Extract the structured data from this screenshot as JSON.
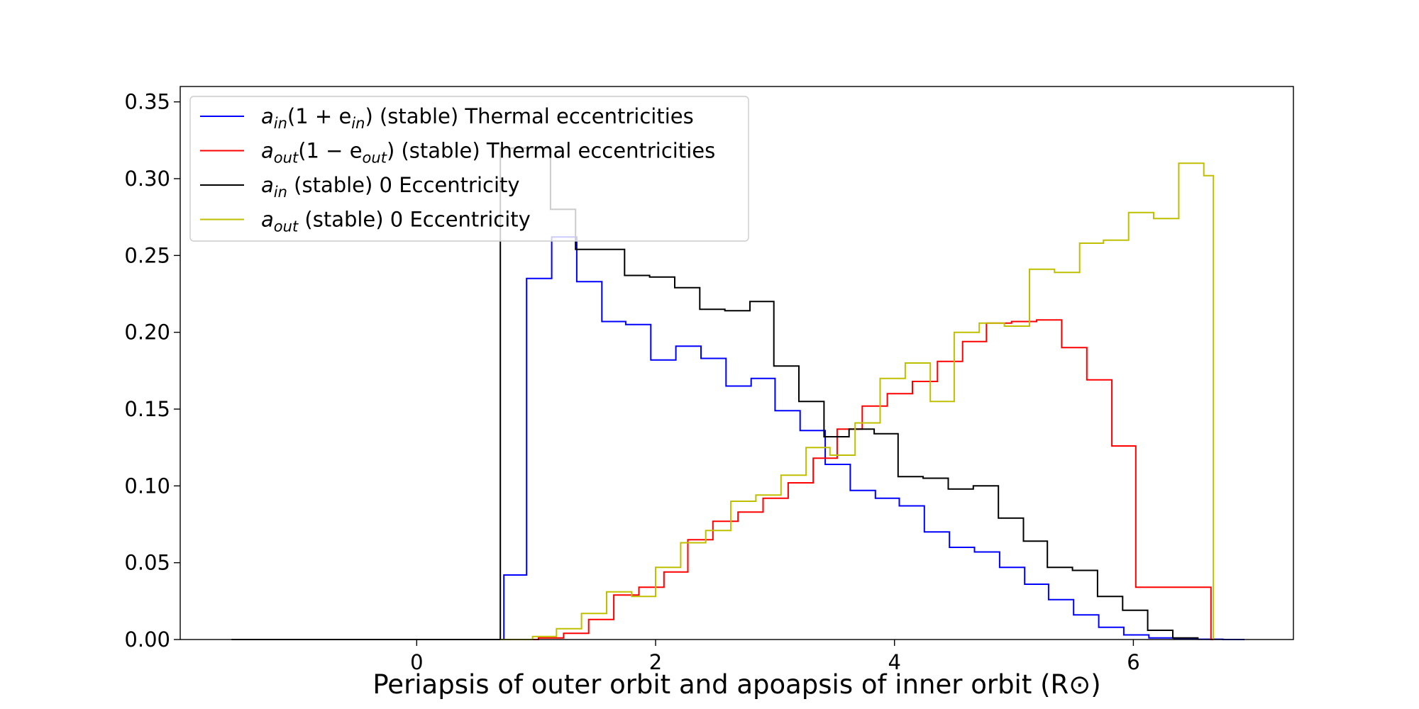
{
  "chart_data": {
    "type": "line",
    "title": "",
    "xlabel": "Periapsis of outer orbit and apoapsis of inner orbit (R⊙)",
    "ylabel": "",
    "xlim": [
      -1.98,
      7.34
    ],
    "ylim": [
      0.0,
      0.36
    ],
    "xticks": [
      0,
      2,
      4,
      6
    ],
    "yticks": [
      0.0,
      0.05,
      0.1,
      0.15,
      0.2,
      0.25,
      0.3,
      0.35
    ],
    "xtick_labels": [
      "0",
      "2",
      "4",
      "6"
    ],
    "ytick_labels": [
      "0.00",
      "0.05",
      "0.10",
      "0.15",
      "0.20",
      "0.25",
      "0.30",
      "0.35"
    ],
    "grid": false,
    "legend_position": "upper-left",
    "series": [
      {
        "name": "a_in(1 + e_in) (stable) Thermal eccentricities",
        "legend_main": "a",
        "legend_sub": "in",
        "legend_tail": "(1 + e",
        "legend_sub2": "in",
        "legend_rest": ") (stable) Thermal eccentricities",
        "color": "#0000ff",
        "x": [
          0.72,
          0.73,
          0.92,
          1.13,
          1.34,
          1.55,
          1.75,
          1.96,
          2.17,
          2.38,
          2.59,
          2.8,
          3.0,
          3.21,
          3.42,
          3.63,
          3.84,
          4.04,
          4.25,
          4.46,
          4.67,
          4.88,
          5.09,
          5.29,
          5.5,
          5.71,
          5.92,
          6.13,
          6.34,
          6.54,
          6.75,
          6.92,
          6.93
        ],
        "y": [
          0.0,
          0.042,
          0.235,
          0.262,
          0.233,
          0.207,
          0.205,
          0.182,
          0.191,
          0.183,
          0.165,
          0.17,
          0.149,
          0.136,
          0.114,
          0.097,
          0.092,
          0.087,
          0.07,
          0.06,
          0.057,
          0.047,
          0.036,
          0.026,
          0.016,
          0.008,
          0.003,
          0.001,
          0.0005,
          0.0002,
          0.0,
          0.0,
          0.0
        ]
      },
      {
        "name": "a_out(1 − e_out) (stable) Thermal eccentricities",
        "legend_main": "a",
        "legend_sub": "out",
        "legend_tail": "(1 − e",
        "legend_sub2": "out",
        "legend_rest": ") (stable) Thermal eccentricities",
        "color": "#ff0000",
        "x": [
          -1.55,
          1.02,
          1.23,
          1.44,
          1.65,
          1.86,
          2.07,
          2.27,
          2.48,
          2.69,
          2.9,
          3.11,
          3.32,
          3.52,
          3.73,
          3.94,
          4.15,
          4.36,
          4.57,
          4.77,
          4.98,
          5.19,
          5.4,
          5.61,
          5.82,
          6.02,
          6.23,
          6.44,
          6.65,
          6.67
        ],
        "y": [
          0.0,
          0.001,
          0.004,
          0.013,
          0.029,
          0.034,
          0.044,
          0.065,
          0.077,
          0.083,
          0.092,
          0.102,
          0.118,
          0.137,
          0.152,
          0.16,
          0.168,
          0.181,
          0.194,
          0.206,
          0.207,
          0.208,
          0.19,
          0.169,
          0.126,
          0.034,
          0.034,
          0.034,
          0.0,
          0.0
        ]
      },
      {
        "name": "a_in (stable) 0 Eccentricity",
        "legend_main": "a",
        "legend_sub": "in",
        "legend_tail": "",
        "legend_sub2": "",
        "legend_rest": " (stable) 0 Eccentricity",
        "color": "#000000",
        "x": [
          -1.55,
          0.69,
          0.7,
          0.91,
          1.12,
          1.33,
          1.53,
          1.74,
          1.95,
          2.16,
          2.37,
          2.58,
          2.79,
          2.99,
          3.2,
          3.41,
          3.62,
          3.83,
          4.03,
          4.24,
          4.45,
          4.66,
          4.87,
          5.08,
          5.28,
          5.49,
          5.7,
          5.91,
          6.12,
          6.33,
          6.54
        ],
        "y": [
          0.0,
          0.0,
          0.32,
          0.32,
          0.28,
          0.254,
          0.254,
          0.237,
          0.236,
          0.229,
          0.215,
          0.214,
          0.22,
          0.178,
          0.155,
          0.132,
          0.137,
          0.134,
          0.106,
          0.105,
          0.098,
          0.1,
          0.079,
          0.064,
          0.047,
          0.045,
          0.028,
          0.019,
          0.006,
          0.001,
          0.0
        ]
      },
      {
        "name": "a_out (stable) 0 Eccentricity",
        "legend_main": "a",
        "legend_sub": "out",
        "legend_tail": "",
        "legend_sub2": "",
        "legend_rest": " (stable) 0 Eccentricity",
        "color": "#bfbf00",
        "x": [
          0.7,
          0.97,
          1.17,
          1.38,
          1.59,
          1.8,
          2.0,
          2.21,
          2.42,
          2.63,
          2.84,
          3.05,
          3.26,
          3.46,
          3.67,
          3.88,
          4.09,
          4.3,
          4.5,
          4.71,
          4.92,
          5.13,
          5.34,
          5.55,
          5.75,
          5.96,
          6.17,
          6.38,
          6.59,
          6.67
        ],
        "y": [
          0.0,
          0.002,
          0.007,
          0.017,
          0.031,
          0.028,
          0.047,
          0.063,
          0.071,
          0.09,
          0.094,
          0.107,
          0.125,
          0.12,
          0.141,
          0.17,
          0.18,
          0.155,
          0.2,
          0.206,
          0.204,
          0.241,
          0.239,
          0.258,
          0.26,
          0.278,
          0.274,
          0.31,
          0.302,
          0.0
        ]
      }
    ]
  }
}
